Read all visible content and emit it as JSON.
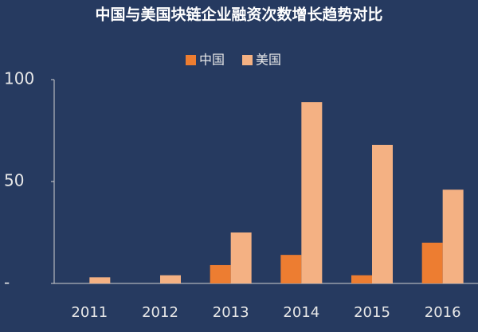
{
  "chart_data": {
    "type": "bar",
    "title": "中国与美国块链企业融资次数增长趋势对比",
    "categories": [
      "2011",
      "2012",
      "2013",
      "2014",
      "2015",
      "2016"
    ],
    "series": [
      {
        "name": "中国",
        "color": "#ed7d31",
        "values": [
          0,
          0,
          9,
          14,
          4,
          20
        ]
      },
      {
        "name": "美国",
        "color": "#f4b183",
        "values": [
          3,
          4,
          25,
          89,
          68,
          46
        ]
      }
    ],
    "ylim": [
      0,
      100
    ],
    "yticks": [
      {
        "value": 0,
        "label": "-"
      },
      50,
      100
    ],
    "grid": false
  }
}
